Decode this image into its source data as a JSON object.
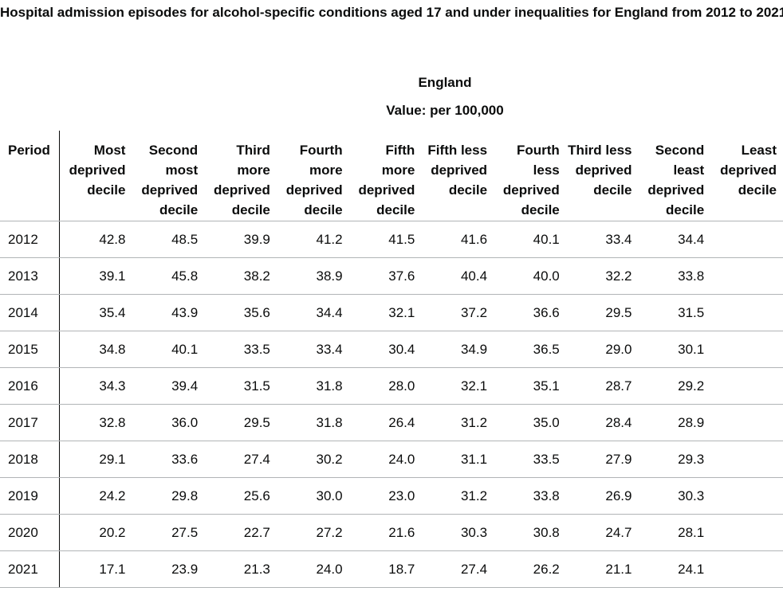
{
  "title": "Hospital admission episodes for alcohol-specific conditions aged 17 and under inequalities for England from 2012 to 2021",
  "area": "England",
  "value_note": "Value: per 100,000",
  "table": {
    "columns": [
      "Period",
      "Most deprived decile",
      "Second most deprived decile",
      "Third more deprived decile",
      "Fourth more deprived decile",
      "Fifth more deprived decile",
      "Fifth less deprived decile",
      "Fourth less deprived decile",
      "Third less deprived decile",
      "Second least deprived decile",
      "Least deprived decile"
    ],
    "rows": [
      {
        "period": "2012",
        "values": [
          "42.8",
          "48.5",
          "39.9",
          "41.2",
          "41.5",
          "41.6",
          "40.1",
          "33.4",
          "34.4",
          ""
        ]
      },
      {
        "period": "2013",
        "values": [
          "39.1",
          "45.8",
          "38.2",
          "38.9",
          "37.6",
          "40.4",
          "40.0",
          "32.2",
          "33.8",
          ""
        ]
      },
      {
        "period": "2014",
        "values": [
          "35.4",
          "43.9",
          "35.6",
          "34.4",
          "32.1",
          "37.2",
          "36.6",
          "29.5",
          "31.5",
          ""
        ]
      },
      {
        "period": "2015",
        "values": [
          "34.8",
          "40.1",
          "33.5",
          "33.4",
          "30.4",
          "34.9",
          "36.5",
          "29.0",
          "30.1",
          ""
        ]
      },
      {
        "period": "2016",
        "values": [
          "34.3",
          "39.4",
          "31.5",
          "31.8",
          "28.0",
          "32.1",
          "35.1",
          "28.7",
          "29.2",
          ""
        ]
      },
      {
        "period": "2017",
        "values": [
          "32.8",
          "36.0",
          "29.5",
          "31.8",
          "26.4",
          "31.2",
          "35.0",
          "28.4",
          "28.9",
          ""
        ]
      },
      {
        "period": "2018",
        "values": [
          "29.1",
          "33.6",
          "27.4",
          "30.2",
          "24.0",
          "31.1",
          "33.5",
          "27.9",
          "29.3",
          ""
        ]
      },
      {
        "period": "2019",
        "values": [
          "24.2",
          "29.8",
          "25.6",
          "30.0",
          "23.0",
          "31.2",
          "33.8",
          "26.9",
          "30.3",
          ""
        ]
      },
      {
        "period": "2020",
        "values": [
          "20.2",
          "27.5",
          "22.7",
          "27.2",
          "21.6",
          "30.3",
          "30.8",
          "24.7",
          "28.1",
          ""
        ]
      },
      {
        "period": "2021",
        "values": [
          "17.1",
          "23.9",
          "21.3",
          "24.0",
          "18.7",
          "27.4",
          "26.2",
          "21.1",
          "24.1",
          ""
        ]
      }
    ]
  }
}
